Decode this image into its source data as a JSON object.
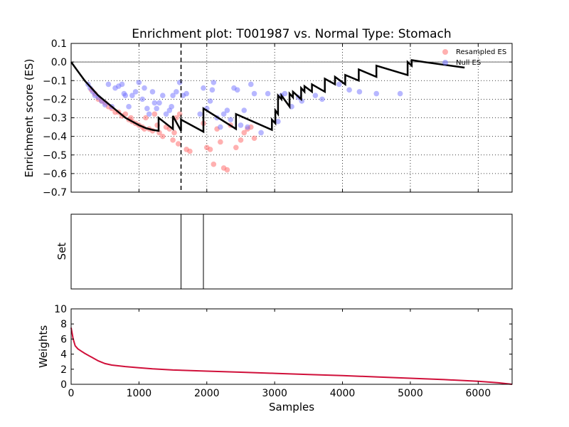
{
  "chart_data": [
    {
      "type": "line",
      "title": "Enrichment plot: T001987 vs. Normal Type: Stomach",
      "xlabel": "",
      "ylabel": "Enrichment score (ES)",
      "xlim": [
        0,
        6500
      ],
      "ylim": [
        -0.7,
        0.1
      ],
      "yticks": [
        "0.1",
        "0.0",
        "−0.1",
        "−0.2",
        "−0.3",
        "−0.4",
        "−0.5",
        "−0.6",
        "−0.7"
      ],
      "grid": true,
      "legend_position": "top-right",
      "legend": [
        "Resampled ES",
        "Null ES"
      ],
      "colors": {
        "es_line": "#000000",
        "resampled": "#ff7070",
        "null": "#6f6fff"
      },
      "es_curve": {
        "x": [
          0,
          100,
          200,
          300,
          400,
          500,
          600,
          700,
          800,
          900,
          1000,
          1100,
          1200,
          1290,
          1290,
          1500,
          1500,
          1620,
          1620,
          1950,
          1950,
          2430,
          2430,
          2960,
          2960,
          3010,
          3010,
          3050,
          3050,
          3100,
          3100,
          3220,
          3220,
          3270,
          3270,
          3390,
          3390,
          3440,
          3440,
          3550,
          3550,
          3740,
          3740,
          3890,
          3890,
          4040,
          4040,
          4240,
          4240,
          4500,
          4500,
          4960,
          4960,
          5020,
          5020,
          5200,
          5800
        ],
        "y": [
          0.0,
          -0.05,
          -0.1,
          -0.14,
          -0.18,
          -0.21,
          -0.24,
          -0.27,
          -0.3,
          -0.32,
          -0.34,
          -0.355,
          -0.365,
          -0.37,
          -0.3,
          -0.36,
          -0.29,
          -0.37,
          -0.31,
          -0.375,
          -0.25,
          -0.36,
          -0.28,
          -0.365,
          -0.31,
          -0.33,
          -0.26,
          -0.28,
          -0.18,
          -0.2,
          -0.18,
          -0.24,
          -0.17,
          -0.19,
          -0.16,
          -0.2,
          -0.14,
          -0.16,
          -0.13,
          -0.16,
          -0.12,
          -0.16,
          -0.09,
          -0.12,
          -0.08,
          -0.12,
          -0.07,
          -0.1,
          -0.04,
          -0.08,
          -0.02,
          -0.07,
          0.0,
          -0.02,
          0.01,
          0.0,
          -0.03
        ]
      },
      "leading_edge_marker_x": 1620,
      "resampled_es": {
        "x": [
          300,
          350,
          400,
          450,
          500,
          550,
          600,
          650,
          700,
          750,
          800,
          850,
          880,
          900,
          950,
          1000,
          1050,
          1080,
          1100,
          1150,
          1200,
          1230,
          1270,
          1300,
          1350,
          1400,
          1450,
          1500,
          1520,
          1550,
          1580,
          1600,
          1700,
          1750,
          1950,
          2000,
          2050,
          2100,
          2150,
          2200,
          2250,
          2300,
          2350,
          2430,
          2500,
          2550,
          2600,
          2650,
          2700
        ],
        "y": [
          -0.15,
          -0.17,
          -0.2,
          -0.21,
          -0.22,
          -0.24,
          -0.25,
          -0.27,
          -0.27,
          -0.29,
          -0.28,
          -0.31,
          -0.3,
          -0.32,
          -0.33,
          -0.34,
          -0.35,
          -0.36,
          -0.3,
          -0.36,
          -0.37,
          -0.28,
          -0.34,
          -0.38,
          -0.4,
          -0.35,
          -0.36,
          -0.42,
          -0.38,
          -0.3,
          -0.44,
          -0.28,
          -0.47,
          -0.48,
          -0.33,
          -0.46,
          -0.47,
          -0.55,
          -0.36,
          -0.43,
          -0.57,
          -0.58,
          -0.34,
          -0.46,
          -0.42,
          -0.38,
          -0.36,
          -0.35,
          -0.41
        ]
      },
      "null_es": {
        "x": [
          250,
          280,
          320,
          350,
          400,
          450,
          500,
          550,
          600,
          650,
          700,
          750,
          780,
          800,
          850,
          900,
          950,
          1000,
          1050,
          1080,
          1120,
          1150,
          1200,
          1230,
          1260,
          1300,
          1350,
          1400,
          1450,
          1480,
          1500,
          1550,
          1600,
          1650,
          1700,
          1900,
          1950,
          2000,
          2050,
          2080,
          2100,
          2150,
          2200,
          2250,
          2300,
          2350,
          2400,
          2450,
          2500,
          2550,
          2600,
          2650,
          2700,
          2800,
          2900,
          3050,
          3100,
          3150,
          3250,
          3350,
          3400,
          3600,
          3700,
          3950,
          4100,
          4250,
          4500,
          4850
        ],
        "y": [
          -0.12,
          -0.14,
          -0.16,
          -0.18,
          -0.19,
          -0.21,
          -0.23,
          -0.12,
          -0.24,
          -0.14,
          -0.13,
          -0.12,
          -0.17,
          -0.18,
          -0.24,
          -0.18,
          -0.16,
          -0.11,
          -0.2,
          -0.14,
          -0.25,
          -0.28,
          -0.16,
          -0.22,
          -0.25,
          -0.22,
          -0.18,
          -0.28,
          -0.26,
          -0.24,
          -0.18,
          -0.16,
          -0.11,
          -0.18,
          -0.17,
          -0.28,
          -0.14,
          -0.25,
          -0.21,
          -0.15,
          -0.11,
          -0.3,
          -0.35,
          -0.28,
          -0.26,
          -0.31,
          -0.14,
          -0.15,
          -0.34,
          -0.26,
          -0.35,
          -0.12,
          -0.17,
          -0.38,
          -0.17,
          -0.32,
          -0.18,
          -0.17,
          -0.24,
          -0.19,
          -0.21,
          -0.18,
          -0.2,
          -0.12,
          -0.15,
          -0.16,
          -0.17,
          -0.17
        ]
      },
      "y_zero_line": 0.0
    },
    {
      "type": "line",
      "title": "",
      "xlabel": "",
      "ylabel": "Set",
      "xlim": [
        0,
        6500
      ],
      "set_hits_x": [
        1620,
        1950
      ]
    },
    {
      "type": "line",
      "title": "",
      "xlabel": "Samples",
      "ylabel": "Weights",
      "xlim": [
        0,
        6500
      ],
      "ylim": [
        0,
        10
      ],
      "xticks": [
        "0",
        "1000",
        "2000",
        "3000",
        "4000",
        "5000",
        "6000"
      ],
      "yticks": [
        "0",
        "2",
        "4",
        "6",
        "8",
        "10"
      ],
      "grid": false,
      "colors": {
        "weights_line": "#d0103a"
      },
      "weights_curve": {
        "x": [
          0,
          30,
          60,
          100,
          150,
          200,
          300,
          400,
          500,
          600,
          800,
          1000,
          1200,
          1500,
          2000,
          2500,
          3000,
          3500,
          4000,
          4500,
          5000,
          5500,
          6000,
          6300,
          6500
        ],
        "y": [
          7.5,
          6.0,
          5.1,
          4.7,
          4.4,
          4.1,
          3.6,
          3.1,
          2.75,
          2.55,
          2.35,
          2.2,
          2.05,
          1.9,
          1.75,
          1.6,
          1.45,
          1.3,
          1.15,
          0.98,
          0.8,
          0.62,
          0.4,
          0.2,
          0.0
        ]
      }
    }
  ]
}
